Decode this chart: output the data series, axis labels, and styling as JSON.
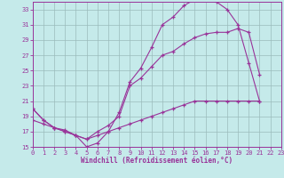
{
  "xlabel": "Windchill (Refroidissement éolien,°C)",
  "bg_color": "#c5eaea",
  "grid_color": "#9bbcbc",
  "line_color": "#993399",
  "x_min": 0,
  "x_max": 23,
  "y_min": 15,
  "y_max": 34,
  "yticks": [
    15,
    17,
    19,
    21,
    23,
    25,
    27,
    29,
    31,
    33
  ],
  "xticks": [
    0,
    1,
    2,
    3,
    4,
    5,
    6,
    7,
    8,
    9,
    10,
    11,
    12,
    13,
    14,
    15,
    16,
    17,
    18,
    19,
    20,
    21,
    22,
    23
  ],
  "s1_x": [
    0,
    1,
    2,
    3,
    4,
    5,
    6,
    7,
    8,
    9,
    10,
    11,
    12,
    13,
    14,
    15,
    16,
    17,
    18,
    19,
    20,
    21
  ],
  "s1_y": [
    20.0,
    18.5,
    17.5,
    17.2,
    16.5,
    15.0,
    15.5,
    17.0,
    19.5,
    23.5,
    25.3,
    28.0,
    31.0,
    32.0,
    33.5,
    34.3,
    34.3,
    34.0,
    33.0,
    31.0,
    26.0,
    21.0
  ],
  "s2_x": [
    0,
    1,
    2,
    3,
    4,
    5,
    6,
    7,
    8,
    9,
    10,
    11,
    12,
    13,
    14,
    15,
    16,
    17,
    18,
    19,
    20,
    21
  ],
  "s2_y": [
    20.0,
    18.5,
    17.5,
    17.0,
    16.5,
    16.0,
    17.0,
    17.8,
    19.0,
    23.0,
    24.0,
    25.5,
    27.0,
    27.5,
    28.5,
    29.3,
    29.8,
    30.0,
    30.0,
    30.5,
    30.0,
    24.5
  ],
  "s3_x": [
    0,
    1,
    2,
    3,
    4,
    5,
    6,
    7,
    8,
    9,
    10,
    11,
    12,
    13,
    14,
    15,
    16,
    17,
    18,
    19,
    20,
    21
  ],
  "s3_y": [
    18.5,
    18.0,
    17.5,
    17.0,
    16.5,
    16.0,
    16.5,
    17.0,
    17.5,
    18.0,
    18.5,
    19.0,
    19.5,
    20.0,
    20.5,
    21.0,
    21.0,
    21.0,
    21.0,
    21.0,
    21.0,
    21.0
  ],
  "xlabel_fontsize": 5.5,
  "tick_fontsize": 5.0
}
